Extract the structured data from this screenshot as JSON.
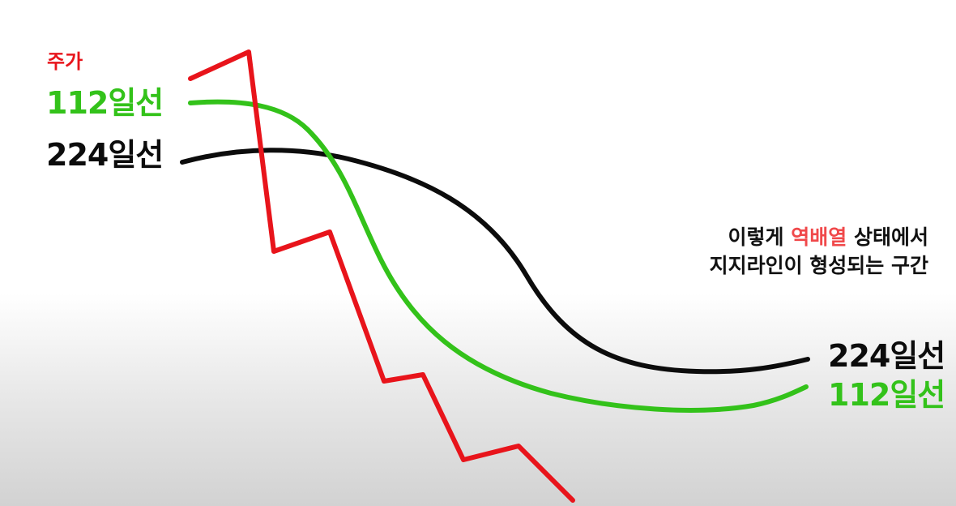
{
  "colors": {
    "price": "#e8141b",
    "ma112": "#33c21a",
    "ma224": "#0c0c0c",
    "highlight": "#f0484a",
    "caption_text": "#111111"
  },
  "labels": {
    "price": "주가",
    "ma112_left": "112일선",
    "ma224_left": "224일선",
    "ma224_right": "224일선",
    "ma112_right": "112일선"
  },
  "caption": {
    "line1_before": "이렇게 ",
    "line1_highlight": "역배열",
    "line1_after": " 상태에서",
    "line2": "지지라인이 형성되는 구간"
  },
  "series": [
    {
      "key": "price",
      "name": "주가",
      "style": "jagged"
    },
    {
      "key": "ma112",
      "name": "112일선",
      "style": "smooth"
    },
    {
      "key": "ma224",
      "name": "224일선",
      "style": "smooth"
    }
  ]
}
